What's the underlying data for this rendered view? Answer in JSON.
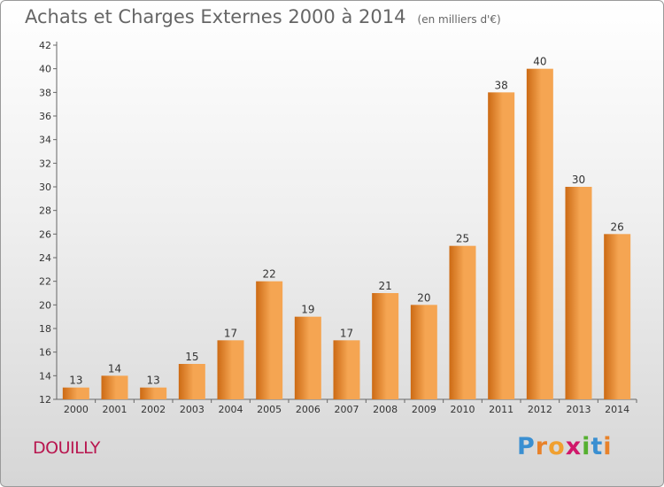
{
  "header": {
    "title": "Achats et Charges Externes 2000 à 2014",
    "unit": "(en milliers d'€)"
  },
  "location": "DOUILLY",
  "logo": {
    "letters": [
      "P",
      "r",
      "o",
      "x",
      "i",
      "t",
      "i"
    ],
    "colors": [
      "#3a8fd1",
      "#e8822a",
      "#f0a030",
      "#d0186a",
      "#55b030",
      "#3a8fd1",
      "#e8822a"
    ]
  },
  "colors": {
    "bar_light": "#f5a552",
    "bar_dark": "#cc6a14",
    "axis": "#666666"
  },
  "chart_data": {
    "type": "bar",
    "title": "Achats et Charges Externes 2000 à 2014",
    "subtitle": "(en milliers d'€)",
    "xlabel": "",
    "ylabel": "",
    "categories": [
      "2000",
      "2001",
      "2002",
      "2003",
      "2004",
      "2005",
      "2006",
      "2007",
      "2008",
      "2009",
      "2010",
      "2011",
      "2012",
      "2013",
      "2014"
    ],
    "values": [
      13,
      14,
      13,
      15,
      17,
      22,
      19,
      17,
      21,
      20,
      25,
      38,
      40,
      30,
      26
    ],
    "ylim": [
      12,
      42
    ],
    "yticks": [
      "12",
      "14",
      "16",
      "18",
      "20",
      "22",
      "24",
      "26",
      "28",
      "30",
      "32",
      "34",
      "36",
      "38",
      "40",
      "42"
    ],
    "grid": false,
    "legend": "none"
  }
}
